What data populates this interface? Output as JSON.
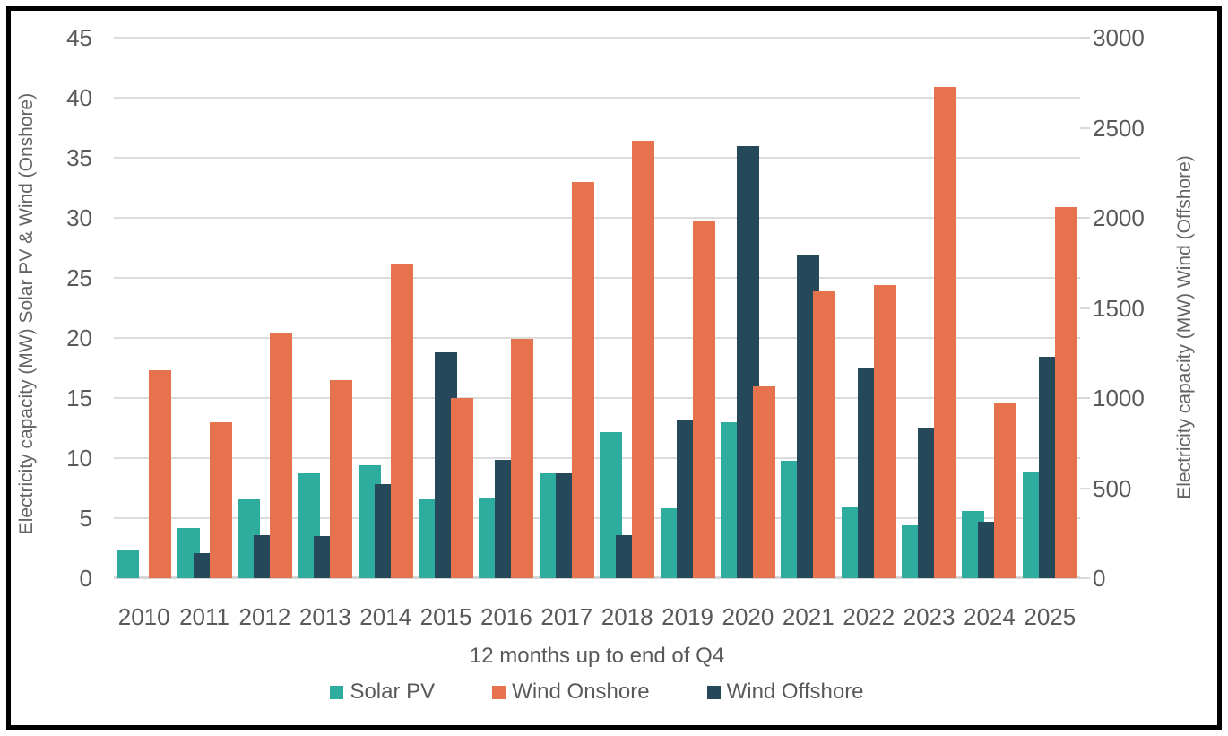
{
  "chart_data": {
    "type": "bar",
    "title": "",
    "categories": [
      "2010",
      "2011",
      "2012",
      "2013",
      "2014",
      "2015",
      "2016",
      "2017",
      "2018",
      "2019",
      "2020",
      "2021",
      "2022",
      "2023",
      "2024",
      "2025"
    ],
    "series": [
      {
        "name": "Solar PV",
        "axis": "left",
        "color": "#2EAC9D",
        "values": [
          2.3,
          4.2,
          6.6,
          8.7,
          9.4,
          6.6,
          6.7,
          8.7,
          12.2,
          5.8,
          13.0,
          9.8,
          6.0,
          4.4,
          5.6,
          8.9
        ]
      },
      {
        "name": "Wind Onshore",
        "axis": "left",
        "color": "#E7724E",
        "values": [
          17.3,
          13.0,
          20.4,
          16.5,
          26.1,
          15.0,
          19.9,
          33.0,
          36.4,
          29.8,
          16.0,
          23.9,
          24.4,
          40.9,
          14.6,
          30.9
        ]
      },
      {
        "name": "Wind Offshore",
        "axis": "right",
        "color": "#25485A",
        "values": [
          0,
          140,
          240,
          235,
          520,
          1255,
          655,
          580,
          240,
          875,
          2400,
          1795,
          1165,
          835,
          315,
          1230
        ]
      }
    ],
    "bar_order": [
      "Solar PV",
      "Wind Offshore",
      "Wind Onshore"
    ],
    "left_axis": {
      "title": "Electricity capacity (MW) Solar PV & Wind (Onshore)",
      "min": 0,
      "max": 45,
      "ticks": [
        0,
        5,
        10,
        15,
        20,
        25,
        30,
        35,
        40,
        45
      ]
    },
    "right_axis": {
      "title": "Electricity capacity (MW) Wind (Offshore)",
      "min": 0,
      "max": 3000,
      "ticks": [
        0,
        500,
        1000,
        1500,
        2000,
        2500,
        3000
      ]
    },
    "x_axis": {
      "title": "12 months up to end of Q4"
    },
    "legend": [
      "Solar PV",
      "Wind Onshore",
      "Wind Offshore"
    ],
    "legend_position": "bottom",
    "grid": true
  },
  "style": {
    "gridline_color": "#dcdcdc",
    "axis_text_color": "#595959",
    "axis_title_color": "#636363",
    "frame_color": "#010101"
  }
}
